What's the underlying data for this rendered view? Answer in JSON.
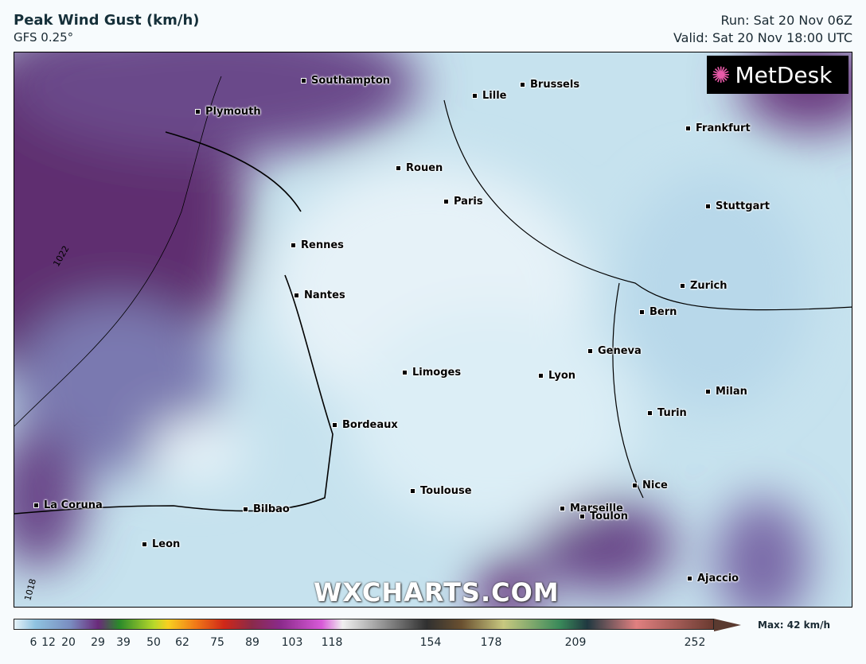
{
  "header": {
    "title": "Peak Wind Gust (km/h)",
    "model": "GFS 0.25°",
    "run": "Run: Sat 20 Nov 06Z",
    "valid": "Valid: Sat 20 Nov 18:00 UTC"
  },
  "logo": "MetDesk",
  "watermark": "WXCHARTS.COM",
  "cities": [
    "Southampton",
    "Brussels",
    "Lille",
    "Plymouth",
    "Frankfurt",
    "Rouen",
    "Paris",
    "Stuttgart",
    "Rennes",
    "Zurich",
    "Nantes",
    "Bern",
    "Geneva",
    "Limoges",
    "Lyon",
    "Milan",
    "Turin",
    "Bordeaux",
    "Nice",
    "Toulouse",
    "La Coruna",
    "Bilbao",
    "Marseille",
    "Toulon",
    "Leon",
    "Ajaccio"
  ],
  "isobar_labels": [
    "1022",
    "1018"
  ],
  "colorbar": {
    "ticks": [
      "6",
      "12",
      "20",
      "29",
      "39",
      "50",
      "62",
      "75",
      "89",
      "103",
      "118",
      "154",
      "178",
      "209",
      "252"
    ],
    "max_label": "Max: 42 km/h"
  },
  "colors": {
    "low": "#e6f2f8",
    "mid": "#8fc3e0",
    "high": "#5e2f70"
  }
}
